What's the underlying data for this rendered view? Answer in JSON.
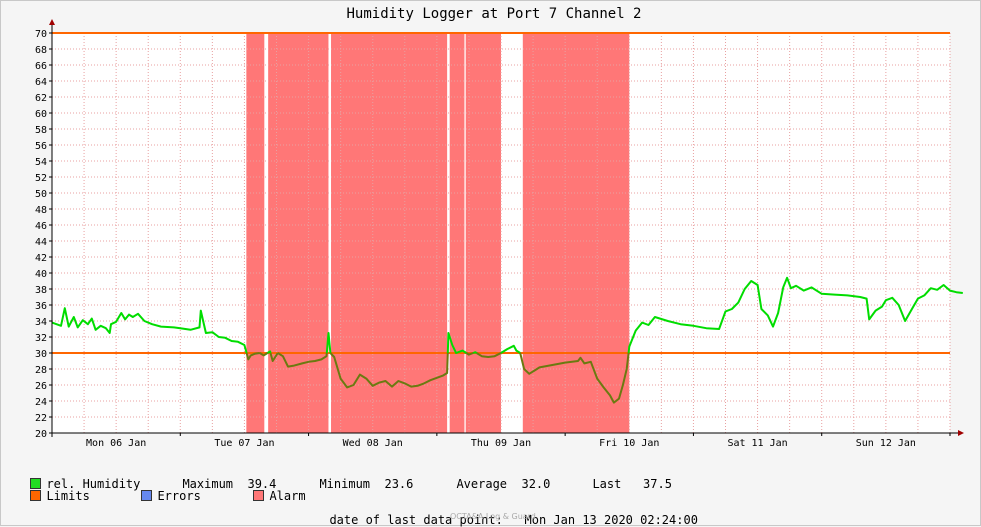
{
  "chart_data": {
    "type": "line",
    "title": "Humidity Logger at Port 7 Channel 2",
    "ylim": [
      20,
      70
    ],
    "y_ticks": [
      20,
      22,
      24,
      26,
      28,
      30,
      32,
      34,
      36,
      38,
      40,
      42,
      44,
      46,
      48,
      50,
      52,
      54,
      56,
      58,
      60,
      62,
      64,
      66,
      68,
      70
    ],
    "x_range_days": [
      0,
      7
    ],
    "x_ticks": [
      {
        "day": 0.5,
        "label": "Mon 06 Jan"
      },
      {
        "day": 1.5,
        "label": "Tue 07 Jan"
      },
      {
        "day": 2.5,
        "label": "Wed 08 Jan"
      },
      {
        "day": 3.5,
        "label": "Thu 09 Jan"
      },
      {
        "day": 4.5,
        "label": "Fri 10 Jan"
      },
      {
        "day": 5.5,
        "label": "Sat 11 Jan"
      },
      {
        "day": 6.5,
        "label": "Sun 12 Jan"
      }
    ],
    "limits": [
      30,
      70
    ],
    "alarm_periods": [
      [
        1.515,
        1.655
      ],
      [
        1.685,
        2.155
      ],
      [
        2.175,
        3.08
      ],
      [
        3.1,
        3.215
      ],
      [
        3.225,
        3.5
      ],
      [
        3.67,
        4.5
      ]
    ],
    "series": [
      {
        "name": "rel. Humidity",
        "color": "#00dd00",
        "alarm_color": "#6b7a10",
        "points": [
          [
            0,
            33.8
          ],
          [
            0.07,
            33.4
          ],
          [
            0.1,
            35.6
          ],
          [
            0.13,
            33.3
          ],
          [
            0.17,
            34.5
          ],
          [
            0.2,
            33.2
          ],
          [
            0.24,
            34.1
          ],
          [
            0.28,
            33.6
          ],
          [
            0.31,
            34.3
          ],
          [
            0.34,
            32.9
          ],
          [
            0.38,
            33.4
          ],
          [
            0.42,
            33.1
          ],
          [
            0.45,
            32.5
          ],
          [
            0.46,
            33.6
          ],
          [
            0.5,
            33.9
          ],
          [
            0.54,
            35.0
          ],
          [
            0.57,
            34.2
          ],
          [
            0.6,
            34.8
          ],
          [
            0.63,
            34.5
          ],
          [
            0.67,
            34.9
          ],
          [
            0.72,
            34.0
          ],
          [
            0.78,
            33.6
          ],
          [
            0.85,
            33.3
          ],
          [
            0.95,
            33.2
          ],
          [
            1.0,
            33.1
          ],
          [
            1.08,
            32.9
          ],
          [
            1.15,
            33.2
          ],
          [
            1.16,
            35.3
          ],
          [
            1.2,
            32.5
          ],
          [
            1.25,
            32.6
          ],
          [
            1.3,
            32.0
          ],
          [
            1.35,
            31.9
          ],
          [
            1.4,
            31.5
          ],
          [
            1.45,
            31.4
          ],
          [
            1.5,
            31.0
          ],
          [
            1.53,
            29.2
          ],
          [
            1.55,
            29.7
          ],
          [
            1.58,
            29.9
          ],
          [
            1.62,
            30.0
          ],
          [
            1.65,
            29.7
          ],
          [
            1.7,
            30.2
          ],
          [
            1.72,
            29.0
          ],
          [
            1.76,
            30.0
          ],
          [
            1.8,
            29.6
          ],
          [
            1.84,
            28.3
          ],
          [
            1.88,
            28.4
          ],
          [
            1.95,
            28.7
          ],
          [
            2.0,
            28.9
          ],
          [
            2.05,
            29.0
          ],
          [
            2.1,
            29.2
          ],
          [
            2.14,
            29.6
          ],
          [
            2.155,
            32.5
          ],
          [
            2.17,
            30.0
          ],
          [
            2.2,
            29.5
          ],
          [
            2.25,
            26.8
          ],
          [
            2.3,
            25.7
          ],
          [
            2.35,
            26.0
          ],
          [
            2.4,
            27.3
          ],
          [
            2.45,
            26.8
          ],
          [
            2.5,
            25.9
          ],
          [
            2.55,
            26.3
          ],
          [
            2.6,
            26.5
          ],
          [
            2.65,
            25.8
          ],
          [
            2.7,
            26.5
          ],
          [
            2.75,
            26.2
          ],
          [
            2.8,
            25.8
          ],
          [
            2.85,
            25.9
          ],
          [
            2.9,
            26.2
          ],
          [
            2.95,
            26.6
          ],
          [
            3.0,
            26.9
          ],
          [
            3.05,
            27.2
          ],
          [
            3.08,
            27.5
          ],
          [
            3.09,
            32.5
          ],
          [
            3.12,
            31.0
          ],
          [
            3.15,
            30.0
          ],
          [
            3.2,
            30.3
          ],
          [
            3.25,
            29.8
          ],
          [
            3.3,
            30.1
          ],
          [
            3.35,
            29.6
          ],
          [
            3.4,
            29.5
          ],
          [
            3.45,
            29.6
          ],
          [
            3.5,
            30.0
          ],
          [
            3.55,
            30.5
          ],
          [
            3.6,
            30.9
          ],
          [
            3.62,
            30.3
          ],
          [
            3.65,
            30.0
          ],
          [
            3.68,
            28.0
          ],
          [
            3.72,
            27.4
          ],
          [
            3.76,
            27.8
          ],
          [
            3.8,
            28.2
          ],
          [
            3.9,
            28.5
          ],
          [
            4.0,
            28.8
          ],
          [
            4.1,
            29.0
          ],
          [
            4.12,
            29.4
          ],
          [
            4.15,
            28.7
          ],
          [
            4.2,
            28.9
          ],
          [
            4.25,
            26.8
          ],
          [
            4.3,
            25.7
          ],
          [
            4.35,
            24.7
          ],
          [
            4.38,
            23.8
          ],
          [
            4.42,
            24.3
          ],
          [
            4.45,
            26.0
          ],
          [
            4.48,
            28.0
          ],
          [
            4.5,
            30.8
          ],
          [
            4.55,
            32.8
          ],
          [
            4.6,
            33.8
          ],
          [
            4.65,
            33.5
          ],
          [
            4.7,
            34.5
          ],
          [
            4.8,
            34.0
          ],
          [
            4.9,
            33.6
          ],
          [
            5.0,
            33.4
          ],
          [
            5.1,
            33.1
          ],
          [
            5.2,
            33.0
          ],
          [
            5.25,
            35.2
          ],
          [
            5.3,
            35.5
          ],
          [
            5.35,
            36.3
          ],
          [
            5.4,
            38.0
          ],
          [
            5.45,
            39.0
          ],
          [
            5.5,
            38.5
          ],
          [
            5.53,
            35.5
          ],
          [
            5.58,
            34.7
          ],
          [
            5.62,
            33.3
          ],
          [
            5.66,
            35.0
          ],
          [
            5.7,
            38.2
          ],
          [
            5.73,
            39.4
          ],
          [
            5.76,
            38.1
          ],
          [
            5.8,
            38.4
          ],
          [
            5.86,
            37.8
          ],
          [
            5.92,
            38.2
          ],
          [
            6.0,
            37.4
          ],
          [
            6.1,
            37.3
          ],
          [
            6.2,
            37.2
          ],
          [
            6.3,
            37.0
          ],
          [
            6.35,
            36.8
          ],
          [
            6.37,
            34.2
          ],
          [
            6.42,
            35.3
          ],
          [
            6.47,
            35.8
          ],
          [
            6.5,
            36.6
          ],
          [
            6.55,
            36.9
          ],
          [
            6.6,
            36.0
          ],
          [
            6.65,
            34.0
          ],
          [
            6.7,
            35.4
          ],
          [
            6.75,
            36.8
          ],
          [
            6.8,
            37.2
          ],
          [
            6.85,
            38.1
          ],
          [
            6.9,
            37.9
          ],
          [
            6.95,
            38.5
          ],
          [
            7.0,
            37.8
          ],
          [
            7.05,
            37.6
          ],
          [
            7.1,
            37.5
          ]
        ]
      }
    ]
  },
  "stats": {
    "series_label": "rel. Humidity",
    "maximum_label": "Maximum",
    "maximum_value": "39.4",
    "minimum_label": "Minimum",
    "minimum_value": "23.6",
    "average_label": "Average",
    "average_value": "32.0",
    "last_label": "Last",
    "last_value": "37.5"
  },
  "legend": {
    "limits_label": "Limits",
    "errors_label": "Errors",
    "alarm_label": "Alarm",
    "humidity_color": "#22dd22",
    "limits_color": "#ff6600",
    "errors_color": "#6688ee",
    "alarm_color": "#ff7777"
  },
  "footer": {
    "last_point_label": "date of last data point:",
    "last_point_value": "Mon Jan 13 2020 02:24:00",
    "watermark": "OCTA&A Log & Guard"
  }
}
